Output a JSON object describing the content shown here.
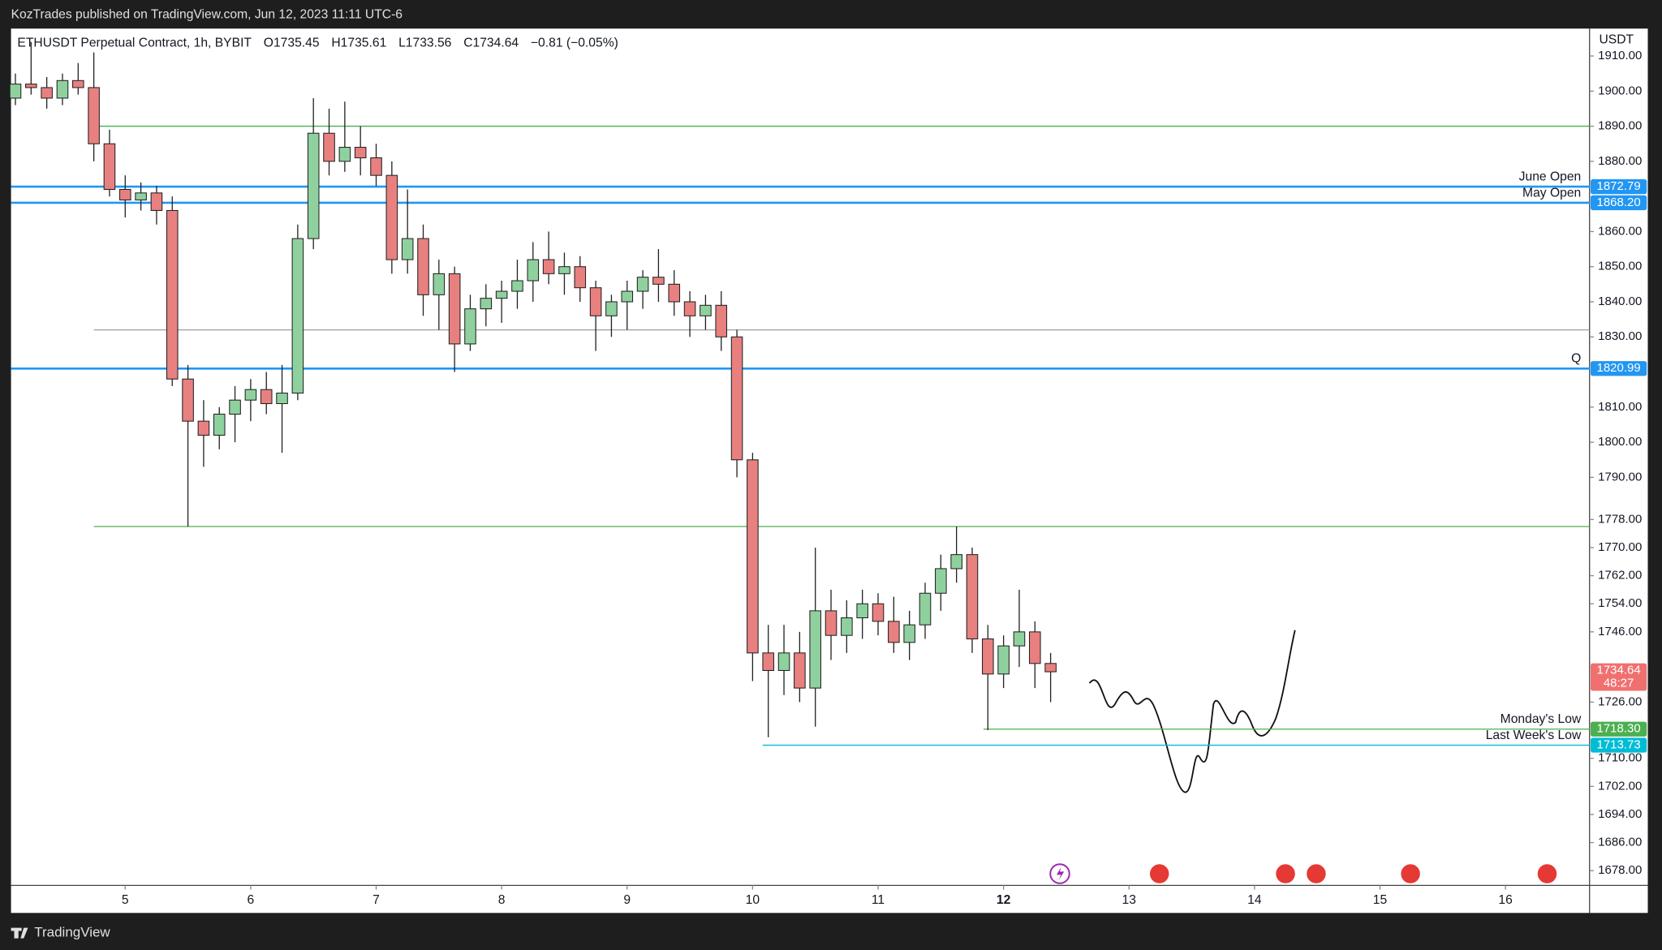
{
  "header": "KozTrades published on TradingView.com, Jun 12, 2023 11:11 UTC-6",
  "footer": "TradingView",
  "chart_data": {
    "type": "candlestick",
    "title": "ETHUSDT Perpetual Contract, 1h, BYBIT",
    "ohlc_legend": [
      "O1735.45",
      "H1735.61",
      "L1733.56",
      "C1734.64",
      "−0.81 (−0.05%)"
    ],
    "currency": "USDT",
    "x": [
      4.125,
      4.25,
      4.375,
      4.5,
      4.625,
      4.75,
      4.875,
      5.0,
      5.125,
      5.25,
      5.375,
      5.5,
      5.625,
      5.75,
      5.875,
      6.0,
      6.125,
      6.25,
      6.375,
      6.5,
      6.625,
      6.75,
      6.875,
      7.0,
      7.125,
      7.25,
      7.375,
      7.5,
      7.625,
      7.75,
      7.875,
      8.0,
      8.125,
      8.25,
      8.375,
      8.5,
      8.625,
      8.75,
      8.875,
      9.0,
      9.125,
      9.25,
      9.375,
      9.5,
      9.625,
      9.75,
      9.875,
      10.0,
      10.125,
      10.25,
      10.375,
      10.5,
      10.625,
      10.75,
      10.875,
      11.0,
      11.125,
      11.25,
      11.375,
      11.5,
      11.625,
      11.75,
      11.875,
      12.0,
      12.125,
      12.25,
      12.375
    ],
    "open": [
      1898,
      1902,
      1901,
      1898,
      1903,
      1901,
      1885,
      1872,
      1869,
      1871,
      1866,
      1818,
      1806,
      1802,
      1808,
      1812,
      1815,
      1811,
      1814,
      1858,
      1888,
      1880,
      1884,
      1881,
      1876,
      1852,
      1858,
      1842,
      1848,
      1828,
      1838,
      1841,
      1843,
      1846,
      1852,
      1848,
      1850,
      1844,
      1836,
      1840,
      1843,
      1847,
      1845,
      1840,
      1836,
      1839,
      1830,
      1795,
      1740,
      1735,
      1740,
      1730,
      1752,
      1745,
      1750,
      1754,
      1749,
      1743,
      1748,
      1757,
      1764,
      1768,
      1744,
      1734,
      1742,
      1746,
      1737
    ],
    "high": [
      1905,
      1914,
      1904,
      1905,
      1908,
      1911,
      1889,
      1876,
      1874,
      1873,
      1870,
      1822,
      1812,
      1810,
      1816,
      1818,
      1820,
      1822,
      1862,
      1898,
      1895,
      1897,
      1890,
      1885,
      1880,
      1872,
      1862,
      1852,
      1850,
      1842,
      1845,
      1846,
      1852,
      1857,
      1860,
      1854,
      1853,
      1846,
      1842,
      1846,
      1849,
      1855,
      1849,
      1843,
      1842,
      1843,
      1832,
      1797,
      1748,
      1748,
      1746,
      1770,
      1758,
      1755,
      1758,
      1757,
      1756,
      1752,
      1760,
      1768,
      1776,
      1770,
      1748,
      1745,
      1758,
      1749,
      1740
    ],
    "low": [
      1896,
      1899,
      1895,
      1896,
      1899,
      1880,
      1870,
      1864,
      1866,
      1862,
      1816,
      1776,
      1793,
      1798,
      1800,
      1806,
      1808,
      1797,
      1812,
      1855,
      1876,
      1877,
      1876,
      1873,
      1848,
      1848,
      1836,
      1832,
      1820,
      1826,
      1833,
      1834,
      1838,
      1840,
      1845,
      1842,
      1840,
      1826,
      1830,
      1832,
      1838,
      1840,
      1836,
      1830,
      1832,
      1826,
      1790,
      1732,
      1716,
      1728,
      1726,
      1719,
      1738,
      1740,
      1744,
      1745,
      1740,
      1738,
      1744,
      1752,
      1760,
      1740,
      1718,
      1730,
      1736,
      1730,
      1726
    ],
    "close": [
      1902,
      1901,
      1898,
      1903,
      1901,
      1885,
      1872,
      1869,
      1871,
      1866,
      1818,
      1806,
      1802,
      1808,
      1812,
      1815,
      1811,
      1814,
      1858,
      1888,
      1880,
      1884,
      1881,
      1876,
      1852,
      1858,
      1842,
      1848,
      1828,
      1838,
      1841,
      1843,
      1846,
      1852,
      1848,
      1850,
      1844,
      1836,
      1840,
      1843,
      1847,
      1845,
      1840,
      1836,
      1839,
      1830,
      1795,
      1740,
      1735,
      1740,
      1730,
      1752,
      1745,
      1750,
      1754,
      1749,
      1743,
      1748,
      1757,
      1764,
      1768,
      1744,
      1734,
      1742,
      1746,
      1737,
      1734.64
    ],
    "up_color": "#8fd19e",
    "down_color": "#e88080",
    "xlim": [
      4.09,
      16.67
    ],
    "xticks": [
      5,
      6,
      7,
      8,
      9,
      10,
      11,
      12,
      13,
      14,
      15,
      16
    ],
    "ylim": [
      1673.8,
      1917.8
    ],
    "yticks": [
      {
        "value": 1910,
        "label": "1910.00"
      },
      {
        "value": 1900,
        "label": "1900.00"
      },
      {
        "value": 1890,
        "label": "1890.00"
      },
      {
        "value": 1880,
        "label": "1880.00"
      },
      {
        "value": 1860,
        "label": "1860.00"
      },
      {
        "value": 1850,
        "label": "1850.00"
      },
      {
        "value": 1840,
        "label": "1840.00"
      },
      {
        "value": 1830,
        "label": "1830.00"
      },
      {
        "value": 1810,
        "label": "1810.00"
      },
      {
        "value": 1800,
        "label": "1800.00"
      },
      {
        "value": 1790,
        "label": "1790.00"
      },
      {
        "value": 1778,
        "label": "1778.00"
      },
      {
        "value": 1770,
        "label": "1770.00"
      },
      {
        "value": 1762,
        "label": "1762.00"
      },
      {
        "value": 1754,
        "label": "1754.00"
      },
      {
        "value": 1746,
        "label": "1746.00"
      },
      {
        "value": 1726,
        "label": "1726.00"
      },
      {
        "value": 1710,
        "label": "1710.00"
      },
      {
        "value": 1702,
        "label": "1702.00"
      },
      {
        "value": 1694,
        "label": "1694.00"
      },
      {
        "value": 1686,
        "label": "1686.00"
      },
      {
        "value": 1678,
        "label": "1678.00"
      }
    ],
    "levels": [
      {
        "label": "June Open",
        "value": 1872.79,
        "value_label": "1872.79",
        "color": "#2196f3",
        "x_start": 4.09
      },
      {
        "label": "May Open",
        "value": 1868.2,
        "value_label": "1868.20",
        "color": "#2196f3",
        "x_start": 4.09
      },
      {
        "label": "Q",
        "value": 1820.99,
        "value_label": "1820.99",
        "color": "#2196f3",
        "x_start": 4.09
      },
      {
        "label": "Monday's Low",
        "value": 1718.3,
        "value_label": "1718.30",
        "color": "#4caf50",
        "x_start": 11.84
      },
      {
        "label": "Last Week's Low",
        "value": 1713.73,
        "value_label": "1713.73",
        "color": "#00bcd4",
        "x_start": 10.08
      }
    ],
    "lines": [
      {
        "value": 1890,
        "color": "#4caf50",
        "x_start": 4.75
      },
      {
        "value": 1832,
        "color": "#9e9e9e",
        "x_start": 4.75
      },
      {
        "value": 1776,
        "color": "#4caf50",
        "x_start": 4.75
      }
    ],
    "last_price": {
      "value": 1734.64,
      "value_label": "1734.64",
      "countdown": "48:27",
      "color": "#f07070"
    }
  }
}
